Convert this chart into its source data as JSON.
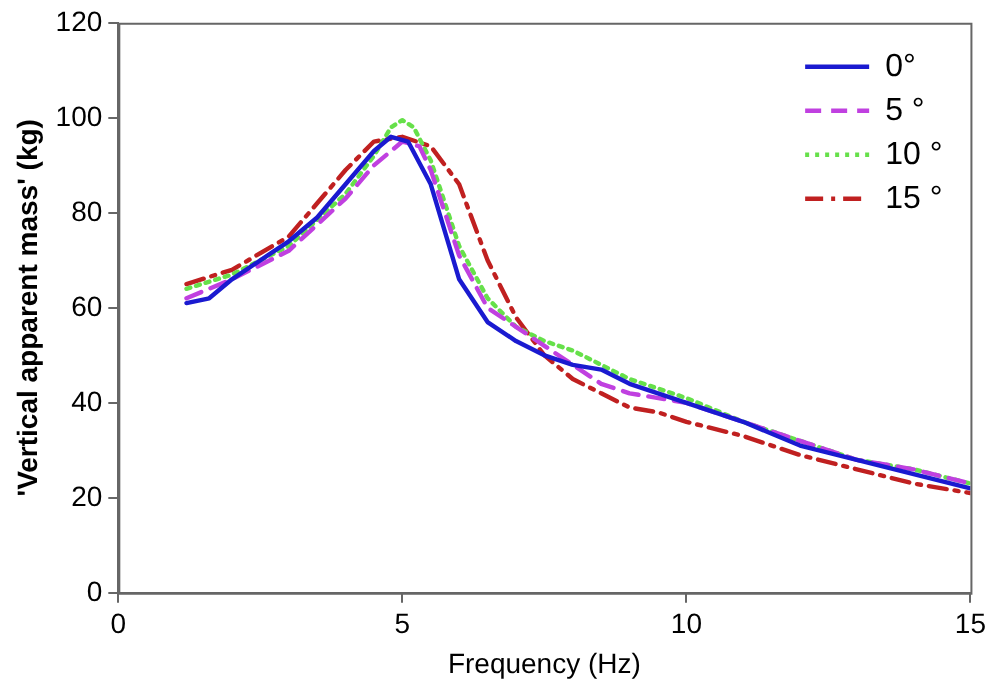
{
  "chart_data": {
    "type": "line",
    "xlabel": "Frequency (Hz)",
    "ylabel": "'Vertical apparent mass' (kg)",
    "xlim": [
      0,
      15
    ],
    "xticks": [
      0,
      5,
      10,
      15
    ],
    "ylim": [
      0,
      120
    ],
    "yticks": [
      0,
      20,
      40,
      60,
      80,
      100,
      120
    ],
    "grid": false,
    "legend": "top right",
    "marker": "none",
    "series": [
      {
        "name": "0°",
        "color": "#1a1ad0",
        "line_style": "solid",
        "x": [
          1.2,
          1.6,
          2,
          3,
          3.5,
          4,
          4.5,
          4.8,
          5.1,
          5.5,
          6,
          6.5,
          7,
          7.5,
          8,
          8.5,
          9,
          9.5,
          10,
          11,
          12,
          13,
          14,
          15
        ],
        "values": [
          61,
          62,
          66,
          74,
          79,
          86,
          93,
          96,
          95,
          86,
          66,
          57,
          53,
          50,
          48,
          47,
          44,
          42,
          40,
          36,
          31,
          28,
          25,
          22
        ]
      },
      {
        "name": "5 °",
        "color": "#c040e0",
        "line_style": "dashed",
        "x": [
          1.2,
          2,
          3,
          4,
          4.5,
          5,
          5.3,
          5.5,
          6,
          6.5,
          7,
          7.5,
          8,
          8.5,
          9,
          10,
          11,
          12,
          13,
          14,
          15
        ],
        "values": [
          62,
          66,
          72,
          83,
          90,
          95,
          94,
          89,
          71,
          60,
          56,
          52,
          48,
          44,
          42,
          40,
          36,
          32,
          28,
          26,
          23
        ]
      },
      {
        "name": "10 °",
        "color": "#66e04a",
        "line_style": "dotted",
        "x": [
          1.2,
          2,
          3,
          4,
          4.5,
          4.8,
          5,
          5.2,
          5.5,
          6,
          6.5,
          7,
          7.5,
          8,
          8.5,
          9,
          10,
          11,
          12,
          13,
          14,
          15
        ],
        "values": [
          64,
          67,
          73,
          84,
          92,
          98,
          99.5,
          98,
          91,
          73,
          62,
          56,
          53,
          51,
          48,
          45,
          41,
          36,
          32,
          28,
          26,
          23
        ]
      },
      {
        "name": "15 °",
        "color": "#c02020",
        "line_style": "dashdot",
        "x": [
          1.2,
          2,
          3,
          3.5,
          4,
          4.5,
          5,
          5.5,
          6,
          6.5,
          7,
          7.5,
          8,
          8.5,
          9,
          9.5,
          10,
          11,
          12,
          13,
          14,
          15
        ],
        "values": [
          65,
          68,
          75,
          82,
          89,
          95,
          96,
          94,
          86,
          70,
          58,
          50,
          45,
          42,
          39,
          38,
          36,
          33,
          29,
          26,
          23,
          21
        ]
      }
    ]
  }
}
